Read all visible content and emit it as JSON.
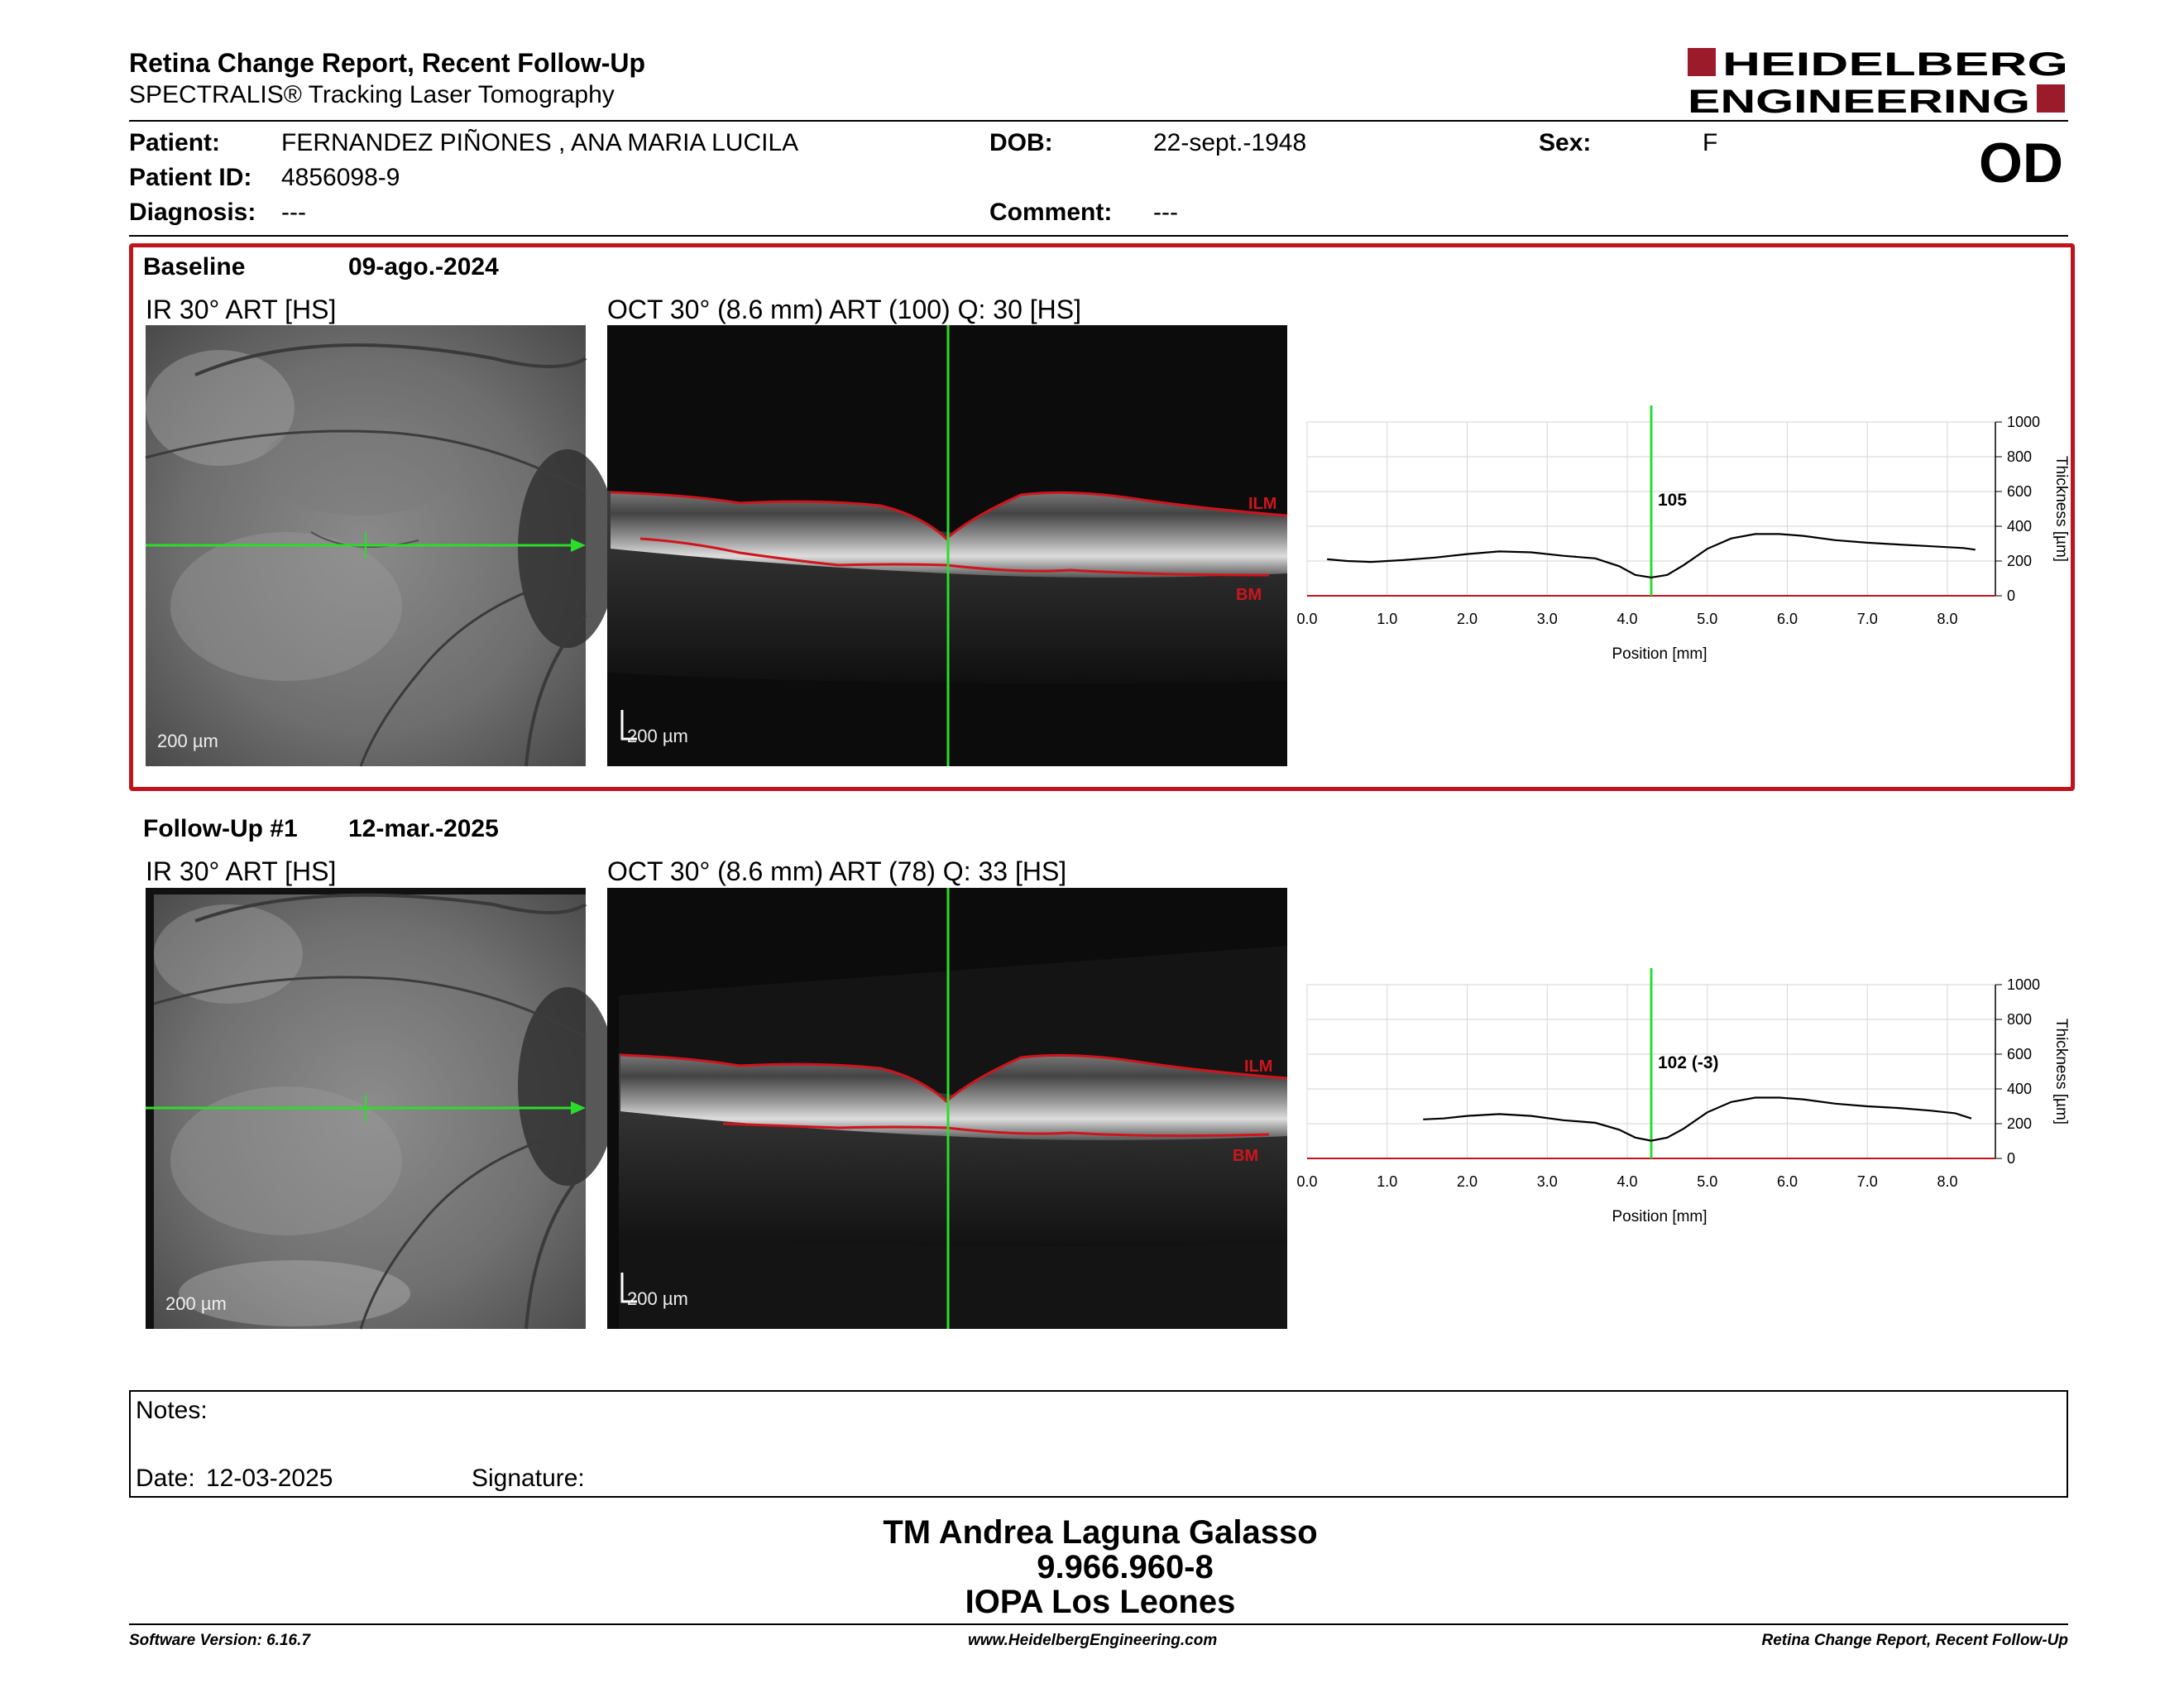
{
  "report": {
    "title": "Retina Change Report, Recent Follow-Up",
    "subtitle": "SPECTRALIS® Tracking Laser Tomography",
    "eye": "OD"
  },
  "brand": {
    "line1": "HEIDELBERG",
    "line2": "ENGINEERING",
    "color": "#9b1b2a"
  },
  "patient": {
    "name_label": "Patient:",
    "name": "FERNANDEZ PIÑONES , ANA MARIA LUCILA",
    "id_label": "Patient ID:",
    "id": "4856098-9",
    "diagnosis_label": "Diagnosis:",
    "diagnosis": "---",
    "dob_label": "DOB:",
    "dob": "22-sept.-1948",
    "comment_label": "Comment:",
    "comment": "---",
    "sex_label": "Sex:",
    "sex": "F"
  },
  "baseline": {
    "label": "Baseline",
    "date": "09-ago.-2024",
    "ir_caption": "IR 30° ART [HS]",
    "oct_caption": "OCT 30° (8.6 mm) ART (100) Q: 30 [HS]",
    "ir_scale": "200 µm",
    "oct_scale": "200 µm",
    "ilm": "ILM",
    "bm": "BM",
    "box_color": "#c0141d"
  },
  "followup": {
    "label": "Follow-Up #1",
    "date": "12-mar.-2025",
    "ir_caption": "IR 30° ART [HS]",
    "oct_caption": "OCT 30° (8.6 mm) ART (78) Q: 33 [HS]",
    "ir_scale": "200 µm",
    "oct_scale": "200 µm",
    "ilm": "ILM",
    "bm": "BM"
  },
  "chart_data": [
    {
      "type": "line",
      "xlabel": "Position [mm]",
      "ylabel": "Thickness [µm]",
      "xlim": [
        0.0,
        8.6
      ],
      "ylim": [
        0,
        1000
      ],
      "xticks": [
        "0.0",
        "1.0",
        "2.0",
        "3.0",
        "4.0",
        "5.0",
        "6.0",
        "7.0",
        "8.0"
      ],
      "yticks": [
        "0",
        "200",
        "400",
        "600",
        "800",
        "1000"
      ],
      "grid": true,
      "marker_x": 4.3,
      "marker_label": "105",
      "series": [
        {
          "x": [
            0.25,
            0.5,
            0.8,
            1.2,
            1.6,
            2.0,
            2.4,
            2.8,
            3.2,
            3.6,
            3.9,
            4.1,
            4.3,
            4.5,
            4.7,
            5.0,
            5.3,
            5.6,
            5.9,
            6.2,
            6.6,
            7.0,
            7.4,
            7.8,
            8.2,
            8.35
          ],
          "y": [
            210,
            200,
            195,
            205,
            220,
            240,
            255,
            250,
            230,
            215,
            170,
            120,
            105,
            120,
            175,
            270,
            330,
            355,
            355,
            345,
            320,
            305,
            295,
            285,
            275,
            265
          ]
        }
      ]
    },
    {
      "type": "line",
      "xlabel": "Position [mm]",
      "ylabel": "Thickness [µm]",
      "xlim": [
        0.0,
        8.6
      ],
      "ylim": [
        0,
        1000
      ],
      "xticks": [
        "0.0",
        "1.0",
        "2.0",
        "3.0",
        "4.0",
        "5.0",
        "6.0",
        "7.0",
        "8.0"
      ],
      "yticks": [
        "0",
        "200",
        "400",
        "600",
        "800",
        "1000"
      ],
      "grid": true,
      "marker_x": 4.3,
      "marker_label": "102 (-3)",
      "series": [
        {
          "x": [
            1.45,
            1.7,
            2.0,
            2.4,
            2.8,
            3.2,
            3.6,
            3.9,
            4.1,
            4.3,
            4.5,
            4.7,
            5.0,
            5.3,
            5.6,
            5.9,
            6.2,
            6.6,
            7.0,
            7.4,
            7.8,
            8.1,
            8.3
          ],
          "y": [
            225,
            230,
            245,
            255,
            245,
            220,
            205,
            165,
            120,
            102,
            120,
            170,
            265,
            325,
            350,
            350,
            340,
            315,
            300,
            290,
            275,
            260,
            230
          ]
        }
      ]
    }
  ],
  "notes": {
    "label": "Notes:",
    "date_label": "Date:",
    "date": "12-03-2025",
    "signature_label": "Signature:"
  },
  "signer": {
    "name": "TM Andrea Laguna Galasso",
    "id": "9.966.960-8",
    "org": "IOPA Los Leones"
  },
  "footer": {
    "software": "Software Version: 6.16.7",
    "website": "www.HeidelbergEngineering.com",
    "report": "Retina Change Report, Recent Follow-Up"
  }
}
